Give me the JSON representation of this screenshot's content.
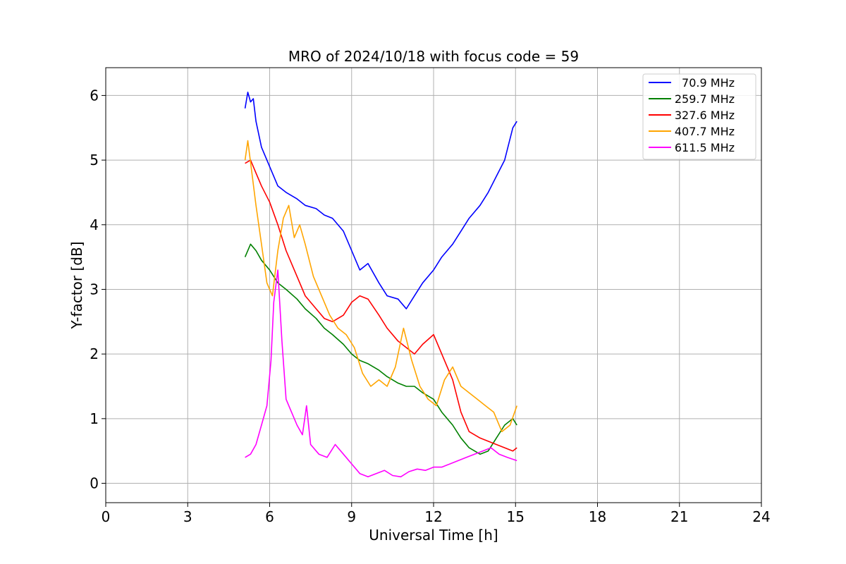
{
  "chart_data": {
    "type": "line",
    "title": "MRO of 2024/10/18 with focus code = 59",
    "xlabel": "Universal Time [h]",
    "ylabel": "Y-factor [dB]",
    "xlim": [
      0,
      24
    ],
    "ylim": [
      -0.3,
      6.43
    ],
    "xticks": [
      0,
      3,
      6,
      9,
      12,
      15,
      18,
      21,
      24
    ],
    "yticks": [
      0,
      1,
      2,
      3,
      4,
      5,
      6
    ],
    "grid": true,
    "legend_position": "top-right",
    "series": [
      {
        "name": "70.9 MHz",
        "color": "#0000ff",
        "x": [
          5.1,
          5.2,
          5.3,
          5.4,
          5.5,
          5.7,
          6.0,
          6.3,
          6.6,
          7.0,
          7.3,
          7.7,
          8.0,
          8.3,
          8.7,
          9.0,
          9.3,
          9.6,
          10.0,
          10.3,
          10.7,
          11.0,
          11.3,
          11.6,
          12.0,
          12.3,
          12.7,
          13.0,
          13.3,
          13.7,
          14.0,
          14.3,
          14.6,
          14.9,
          15.05
        ],
        "y": [
          5.8,
          6.05,
          5.9,
          5.95,
          5.6,
          5.2,
          4.9,
          4.6,
          4.5,
          4.4,
          4.3,
          4.25,
          4.15,
          4.1,
          3.9,
          3.6,
          3.3,
          3.4,
          3.1,
          2.9,
          2.85,
          2.7,
          2.9,
          3.1,
          3.3,
          3.5,
          3.7,
          3.9,
          4.1,
          4.3,
          4.5,
          4.75,
          5.0,
          5.5,
          5.6
        ]
      },
      {
        "name": "259.7 MHz",
        "color": "#008000",
        "x": [
          5.1,
          5.3,
          5.5,
          5.7,
          6.0,
          6.3,
          6.6,
          7.0,
          7.3,
          7.7,
          8.0,
          8.3,
          8.7,
          9.0,
          9.3,
          9.6,
          10.0,
          10.3,
          10.7,
          11.0,
          11.3,
          11.6,
          12.0,
          12.3,
          12.7,
          13.0,
          13.3,
          13.7,
          14.0,
          14.3,
          14.6,
          14.9,
          15.05
        ],
        "y": [
          3.5,
          3.7,
          3.6,
          3.45,
          3.3,
          3.1,
          3.0,
          2.85,
          2.7,
          2.55,
          2.4,
          2.3,
          2.15,
          2.0,
          1.9,
          1.85,
          1.75,
          1.65,
          1.55,
          1.5,
          1.5,
          1.4,
          1.3,
          1.1,
          0.9,
          0.7,
          0.55,
          0.45,
          0.5,
          0.7,
          0.9,
          1.0,
          0.9
        ]
      },
      {
        "name": "327.6 MHz",
        "color": "#ff0000",
        "x": [
          5.1,
          5.3,
          5.5,
          5.7,
          6.0,
          6.3,
          6.6,
          7.0,
          7.3,
          7.7,
          8.0,
          8.3,
          8.7,
          9.0,
          9.3,
          9.6,
          10.0,
          10.3,
          10.7,
          11.0,
          11.3,
          11.6,
          12.0,
          12.3,
          12.7,
          13.0,
          13.3,
          13.7,
          14.0,
          14.3,
          14.6,
          14.9,
          15.05
        ],
        "y": [
          4.95,
          5.0,
          4.8,
          4.6,
          4.35,
          4.0,
          3.6,
          3.2,
          2.9,
          2.7,
          2.55,
          2.5,
          2.6,
          2.8,
          2.9,
          2.85,
          2.6,
          2.4,
          2.2,
          2.1,
          2.0,
          2.15,
          2.3,
          2.0,
          1.6,
          1.1,
          0.8,
          0.7,
          0.65,
          0.6,
          0.55,
          0.5,
          0.55
        ]
      },
      {
        "name": "407.7 MHz",
        "color": "#ffa500",
        "x": [
          5.1,
          5.2,
          5.35,
          5.5,
          5.7,
          5.9,
          6.1,
          6.3,
          6.5,
          6.7,
          6.9,
          7.1,
          7.3,
          7.6,
          7.9,
          8.2,
          8.5,
          8.8,
          9.1,
          9.4,
          9.7,
          10.0,
          10.3,
          10.6,
          10.9,
          11.2,
          11.5,
          11.8,
          12.1,
          12.4,
          12.7,
          13.0,
          13.3,
          13.6,
          13.9,
          14.2,
          14.5,
          14.8,
          15.05
        ],
        "y": [
          5.0,
          5.3,
          4.8,
          4.3,
          3.7,
          3.1,
          2.9,
          3.6,
          4.1,
          4.3,
          3.8,
          4.0,
          3.7,
          3.2,
          2.9,
          2.6,
          2.4,
          2.3,
          2.1,
          1.7,
          1.5,
          1.6,
          1.5,
          1.8,
          2.4,
          1.9,
          1.5,
          1.3,
          1.2,
          1.6,
          1.8,
          1.5,
          1.4,
          1.3,
          1.2,
          1.1,
          0.8,
          0.9,
          1.2
        ]
      },
      {
        "name": "611.5 MHz",
        "color": "#ff00ff",
        "x": [
          5.1,
          5.3,
          5.5,
          5.7,
          5.9,
          6.05,
          6.15,
          6.3,
          6.45,
          6.6,
          6.8,
          7.0,
          7.2,
          7.35,
          7.5,
          7.8,
          8.1,
          8.4,
          8.7,
          9.0,
          9.3,
          9.6,
          9.9,
          10.2,
          10.5,
          10.8,
          11.1,
          11.4,
          11.7,
          12.0,
          12.3,
          12.6,
          12.9,
          13.2,
          13.5,
          13.8,
          14.1,
          14.4,
          14.7,
          15.05
        ],
        "y": [
          0.4,
          0.45,
          0.6,
          0.9,
          1.2,
          1.9,
          2.8,
          3.3,
          2.2,
          1.3,
          1.1,
          0.9,
          0.75,
          1.2,
          0.6,
          0.45,
          0.4,
          0.6,
          0.45,
          0.3,
          0.15,
          0.1,
          0.15,
          0.2,
          0.12,
          0.1,
          0.18,
          0.22,
          0.2,
          0.25,
          0.25,
          0.3,
          0.35,
          0.4,
          0.45,
          0.5,
          0.55,
          0.45,
          0.4,
          0.35
        ]
      }
    ]
  }
}
